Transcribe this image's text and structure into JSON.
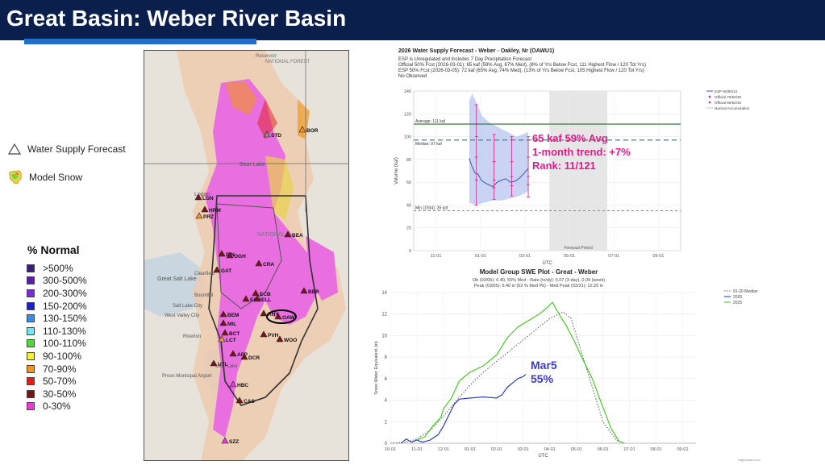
{
  "header": {
    "title": "Great Basin: Weber River Basin"
  },
  "legend": {
    "water_supply_forecast": "Water Supply Forecast",
    "model_snow": "Model Snow",
    "percent_title": "% Normal",
    "percent_items": [
      {
        "label": ">500%",
        "color": "#3b1f7a"
      },
      {
        "label": "300-500%",
        "color": "#5a1fa8"
      },
      {
        "label": "200-300%",
        "color": "#7d2bd6"
      },
      {
        "label": "150-200%",
        "color": "#1b1fc9"
      },
      {
        "label": "130-150%",
        "color": "#3a8de0"
      },
      {
        "label": "110-130%",
        "color": "#6fe6f0"
      },
      {
        "label": "100-110%",
        "color": "#4fd93a"
      },
      {
        "label": "90-100%",
        "color": "#f3f02e"
      },
      {
        "label": "70-90%",
        "color": "#f0961e"
      },
      {
        "label": "50-70%",
        "color": "#e01c1c"
      },
      {
        "label": "30-50%",
        "color": "#7a1414"
      },
      {
        "label": "0-30%",
        "color": "#e83ae0"
      }
    ]
  },
  "map": {
    "labels": {
      "reservoir": "Reservoir",
      "national_forest": "NATIONAL FOREST",
      "great_salt_lake": "Great Salt Lake",
      "bear_lake": "Bear Lake",
      "clearfield": "Clearfield",
      "bountiful": "Bountiful",
      "salt_lake_city": "Salt Lake City",
      "west_valley": "West Valley City",
      "riverton": "Riverton",
      "provo": "Provo Municipal Airport",
      "utah_lake": "Utah Lake",
      "logan": "Logan",
      "national": "NATIONAL"
    },
    "stations": [
      {
        "code": "STD",
        "color": "#8a8a8a"
      },
      {
        "code": "BOR",
        "color": "#f0961e"
      },
      {
        "code": "LGN",
        "color": "#7a1414"
      },
      {
        "code": "HRM",
        "color": "#7a1414"
      },
      {
        "code": "PRZ",
        "color": "#f0961e"
      },
      {
        "code": "BEA",
        "color": "#7a1414"
      },
      {
        "code": "PIN",
        "color": "#7a1414"
      },
      {
        "code": "OGH",
        "color": "#7a1414"
      },
      {
        "code": "CRA",
        "color": "#7a1414"
      },
      {
        "code": "GAT",
        "color": "#7a1414"
      },
      {
        "code": "ECB",
        "color": "#7a1414"
      },
      {
        "code": "ECH",
        "color": "#7a1414"
      },
      {
        "code": "ELL",
        "color": "#7a1414"
      },
      {
        "code": "BER",
        "color": "#7a1414"
      },
      {
        "code": "RHY",
        "color": "#7a1414"
      },
      {
        "code": "OAW",
        "color": "#7a1414"
      },
      {
        "code": "BEM",
        "color": "#7a1414"
      },
      {
        "code": "MIL",
        "color": "#7a1414"
      },
      {
        "code": "BCT",
        "color": "#7a1414"
      },
      {
        "code": "LCT",
        "color": "#f0961e"
      },
      {
        "code": "PVH",
        "color": "#7a1414"
      },
      {
        "code": "WOO",
        "color": "#7a1414"
      },
      {
        "code": "AFP",
        "color": "#7a1414"
      },
      {
        "code": "DCR",
        "color": "#7a1414"
      },
      {
        "code": "UTL",
        "color": "#7a1414"
      },
      {
        "code": "HBC",
        "color": "#e83ae0"
      },
      {
        "code": "CAS",
        "color": "#7a1414"
      },
      {
        "code": "SZZ",
        "color": "#e83ae0"
      }
    ]
  },
  "forecast_chart": {
    "title": "2026 Water Supply Forecast - Weber - Oakley, Nr (OAWU1)",
    "lines": [
      "ESP is Unregulated and Includes 7 Day Precipitation Forecast",
      "Official 50% Fcst (2026-03-01): 65 kaf (59% Avg, 67% Med), (8% of Yrs Below Fcst, 111 Highest Flow / 120 Tot Yrs)",
      "ESP 50% Fcst (2026-03-05): 72 kaf (65% Avg, 74% Med), (13% of Yrs Below Fcst, 105 Highest Flow / 120 Tot Yrs)",
      "No Observed"
    ],
    "legend": [
      "ESP 90/50/10",
      "Official 70/50/30",
      "Official 90/50/10",
      "Normal Accumulation"
    ],
    "ref_lines": {
      "average": "Average: 111 kaf",
      "median": "Median: 97 kaf",
      "min": "Min (1934): 35 kaf"
    },
    "ylabel": "Volume (kaf)",
    "xlabel": "UTC",
    "forecast_period": "Forecast Period",
    "annotation": [
      "65 kaf  59% Avg",
      "1-month trend: +7%",
      "Rank: 11/121"
    ]
  },
  "chart_data": [
    {
      "type": "line",
      "title": "2026 Water Supply Forecast - Weber - Oakley, Nr (OAWU1)",
      "ylabel": "Volume (kaf)",
      "xlabel": "UTC",
      "ylim": [
        0,
        140
      ],
      "categories": [
        "11-01",
        "01-01",
        "03-01",
        "05-01",
        "07-01",
        "09-01"
      ],
      "yticks": [
        0,
        20,
        40,
        60,
        80,
        100,
        120,
        140
      ],
      "reference": {
        "average": 111,
        "median": 97,
        "min": 35
      },
      "esp_median": [
        [
          0.0,
          81
        ],
        [
          0.03,
          76
        ],
        [
          0.06,
          72
        ],
        [
          0.1,
          68
        ],
        [
          0.15,
          67
        ],
        [
          0.2,
          62
        ],
        [
          0.25,
          60
        ],
        [
          0.32,
          58
        ],
        [
          0.4,
          56
        ],
        [
          0.47,
          60
        ],
        [
          0.55,
          62
        ],
        [
          0.62,
          63
        ],
        [
          0.7,
          60
        ],
        [
          0.78,
          61
        ],
        [
          0.86,
          64
        ],
        [
          0.93,
          68
        ],
        [
          1.0,
          72
        ]
      ],
      "esp_upper": [
        [
          0.0,
          132
        ],
        [
          0.05,
          138
        ],
        [
          0.12,
          130
        ],
        [
          0.22,
          118
        ],
        [
          0.35,
          112
        ],
        [
          0.5,
          108
        ],
        [
          0.65,
          104
        ],
        [
          0.8,
          100
        ],
        [
          1.0,
          104
        ]
      ],
      "esp_lower": [
        [
          0.0,
          42
        ],
        [
          0.1,
          40
        ],
        [
          0.25,
          42
        ],
        [
          0.4,
          44
        ],
        [
          0.55,
          44
        ],
        [
          0.7,
          46
        ],
        [
          0.85,
          48
        ],
        [
          1.0,
          52
        ]
      ],
      "official": [
        {
          "x": 0.12,
          "p10": 40,
          "p30": 62,
          "p50": 82,
          "p70": 100,
          "p90": 128
        },
        {
          "x": 0.42,
          "p10": 45,
          "p30": 55,
          "p50": 62,
          "p70": 78,
          "p90": 102
        },
        {
          "x": 0.72,
          "p10": 48,
          "p30": 57,
          "p50": 65,
          "p70": 78,
          "p90": 100
        },
        {
          "x": 1.0,
          "p10": 47,
          "p30": 58,
          "p50": 65,
          "p70": 82,
          "p90": 100
        }
      ]
    },
    {
      "type": "line",
      "title": "Model Group SWE Plot - Great - Weber",
      "subtitle1": "Ob (03/05): 6.40, 55% Med - Rate (in/dy): 0.07 (3-day), 0.09 (week)",
      "subtitle2": "Peak (03/05): 6.40 in (52 % Med Pk) - Med Peak (03/31): 12.20 in",
      "ylabel": "Snow Water Equivalent (in)",
      "xlabel": "UTC",
      "ylim": [
        0,
        14
      ],
      "categories": [
        "10-01",
        "11-01",
        "12-01",
        "01-01",
        "02-01",
        "03-01",
        "04-01",
        "05-01",
        "06-01",
        "07-01",
        "08-01",
        "09-01"
      ],
      "yticks": [
        0,
        2,
        4,
        6,
        8,
        10,
        12,
        14
      ],
      "series": [
        {
          "name": "91-20 Median",
          "color": "#666666",
          "dash": true,
          "values": [
            [
              0.0,
              0
            ],
            [
              0.6,
              0.1
            ],
            [
              1.0,
              0.4
            ],
            [
              1.5,
              1.2
            ],
            [
              2.0,
              2.5
            ],
            [
              2.5,
              4.0
            ],
            [
              3.0,
              5.4
            ],
            [
              3.5,
              6.6
            ],
            [
              4.0,
              7.6
            ],
            [
              4.5,
              8.6
            ],
            [
              5.0,
              9.6
            ],
            [
              5.5,
              10.6
            ],
            [
              6.0,
              11.6
            ],
            [
              6.5,
              12.2
            ],
            [
              6.8,
              11.6
            ],
            [
              7.0,
              10.0
            ],
            [
              7.5,
              6.0
            ],
            [
              8.0,
              2.0
            ],
            [
              8.5,
              0.3
            ],
            [
              8.8,
              0
            ]
          ]
        },
        {
          "name": "2026",
          "color": "#1b2fb8",
          "values": [
            [
              0.4,
              0
            ],
            [
              0.6,
              0.4
            ],
            [
              0.8,
              0.1
            ],
            [
              1.0,
              0.3
            ],
            [
              1.2,
              0.1
            ],
            [
              1.5,
              0.3
            ],
            [
              1.8,
              0.8
            ],
            [
              2.0,
              1.6
            ],
            [
              2.2,
              2.6
            ],
            [
              2.4,
              3.6
            ],
            [
              2.6,
              4.1
            ],
            [
              3.0,
              4.2
            ],
            [
              3.5,
              4.3
            ],
            [
              4.0,
              4.2
            ],
            [
              4.2,
              4.5
            ],
            [
              4.4,
              5.2
            ],
            [
              4.6,
              5.6
            ],
            [
              4.8,
              6.0
            ],
            [
              5.0,
              6.2
            ],
            [
              5.1,
              6.4
            ]
          ]
        },
        {
          "name": "2025",
          "color": "#3fc21b",
          "values": [
            [
              1.0,
              0.3
            ],
            [
              1.3,
              0.6
            ],
            [
              1.6,
              1.6
            ],
            [
              1.9,
              2.4
            ],
            [
              2.0,
              3.2
            ],
            [
              2.3,
              4.2
            ],
            [
              2.6,
              5.8
            ],
            [
              3.0,
              6.6
            ],
            [
              3.5,
              7.2
            ],
            [
              4.0,
              8.2
            ],
            [
              4.4,
              9.8
            ],
            [
              4.8,
              10.8
            ],
            [
              5.2,
              11.4
            ],
            [
              5.6,
              12.0
            ],
            [
              5.9,
              12.6
            ],
            [
              6.1,
              13.1
            ],
            [
              6.3,
              12.2
            ],
            [
              6.6,
              11.0
            ],
            [
              6.9,
              9.6
            ],
            [
              7.2,
              8.0
            ],
            [
              7.6,
              6.0
            ],
            [
              7.9,
              4.0
            ],
            [
              8.3,
              1.4
            ],
            [
              8.6,
              0.2
            ],
            [
              8.8,
              0
            ]
          ]
        }
      ],
      "annotation": [
        "Mar5",
        "55%"
      ]
    }
  ],
  "swe_chart": {
    "title": "Model Group SWE Plot - Great - Weber",
    "subtitle1": "Ob (03/05): 6.40, 55% Med - Rate (in/dy): 0.07 (3-day), 0.09 (week)",
    "subtitle2": "Peak (03/05): 6.40 in (52 % Med Pk) - Med Peak (03/31): 12.20 in",
    "legend": [
      "91-20 Median",
      "2026",
      "2025"
    ],
    "ylabel": "Snow Water Equivalent (in)",
    "xlabel": "UTC",
    "annotation": [
      "Mar5",
      "55%"
    ],
    "credit": "Highcharts.com"
  }
}
